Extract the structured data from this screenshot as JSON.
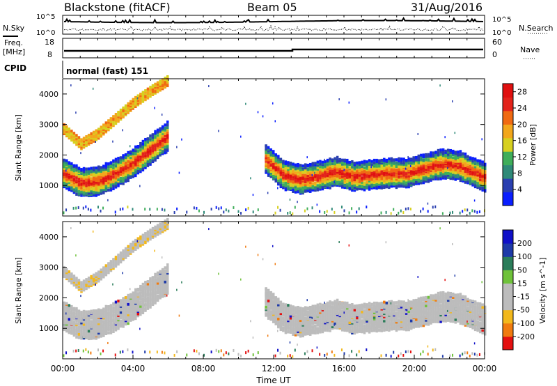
{
  "header": {
    "station": "Blackstone (fitACF)",
    "beam": "Beam 05",
    "date": "31/Aug/2016"
  },
  "sky_panel": {
    "left_label": "N.Sky",
    "right_label": "N.Search",
    "tick_top": "10^5",
    "tick_bottom": "10^0"
  },
  "freq_panel": {
    "label_line1": "Freq.",
    "label_line2": "[MHz]",
    "left_ticks": [
      "18",
      "8"
    ],
    "right_ticks": [
      "60",
      "0"
    ],
    "right_label": "Nave"
  },
  "cpid": {
    "label": "CPID",
    "text": "normal (fast) 151"
  },
  "time_axis": {
    "title": "Time UT",
    "ticks": [
      "00:00",
      "04:00",
      "08:00",
      "12:00",
      "16:00",
      "20:00",
      "00:00"
    ]
  },
  "colors": {
    "power_scale": [
      "#0a1eff",
      "#2a3fb0",
      "#2f8a78",
      "#3fae5a",
      "#d7d020",
      "#f2a71c",
      "#f06a12",
      "#e3231b",
      "#e01010"
    ],
    "velocity_scale": [
      "#e41010",
      "#f07b10",
      "#f2b81c",
      "#bcbcbc",
      "#bcbcbc",
      "#6fc23a",
      "#2b7d5a",
      "#1e3aa8",
      "#1010c8"
    ]
  },
  "chart_data": [
    {
      "type": "heatmap",
      "title": "",
      "xlabel": "Time UT",
      "ylabel": "Slant Range [km]",
      "x_ticks": [
        "00:00",
        "04:00",
        "08:00",
        "12:00",
        "16:00",
        "20:00",
        "00:00"
      ],
      "xlim_hours": [
        0,
        24
      ],
      "ylim": [
        0,
        4500
      ],
      "y_ticks": [
        1000,
        2000,
        3000,
        4000
      ],
      "colorbar": {
        "label": "Power [dB]",
        "ticks": [
          4,
          8,
          12,
          16,
          20,
          24,
          28
        ],
        "range": [
          0,
          30
        ]
      },
      "features": [
        {
          "name": "main band center",
          "hours": [
            0,
            1,
            2,
            3,
            4,
            5,
            6,
            11.5,
            12.5,
            13.5,
            14.5,
            15.5,
            16.5,
            17.5,
            18.5,
            19.5,
            20.5,
            21.5,
            22.5,
            24
          ],
          "range_km": [
            1450,
            1150,
            1180,
            1450,
            1800,
            2250,
            2700,
            1900,
            1400,
            1250,
            1350,
            1500,
            1350,
            1400,
            1450,
            1450,
            1600,
            1750,
            1700,
            1300
          ]
        },
        {
          "name": "upper band",
          "hours": [
            0,
            1,
            2,
            3,
            4,
            5,
            6
          ],
          "range_km": [
            2900,
            2400,
            2750,
            3250,
            3750,
            4150,
            4500
          ]
        }
      ]
    },
    {
      "type": "heatmap",
      "title": "",
      "xlabel": "Time UT",
      "ylabel": "Slant Range [km]",
      "x_ticks": [
        "00:00",
        "04:00",
        "08:00",
        "12:00",
        "16:00",
        "20:00",
        "00:00"
      ],
      "xlim_hours": [
        0,
        24
      ],
      "ylim": [
        0,
        4500
      ],
      "y_ticks": [
        1000,
        2000,
        3000,
        4000
      ],
      "colorbar": {
        "label": "Velocity [m s^-1]",
        "ticks": [
          200,
          100,
          50,
          15,
          -15,
          -50,
          -100,
          -200
        ],
        "range": [
          -250,
          250
        ]
      }
    }
  ]
}
